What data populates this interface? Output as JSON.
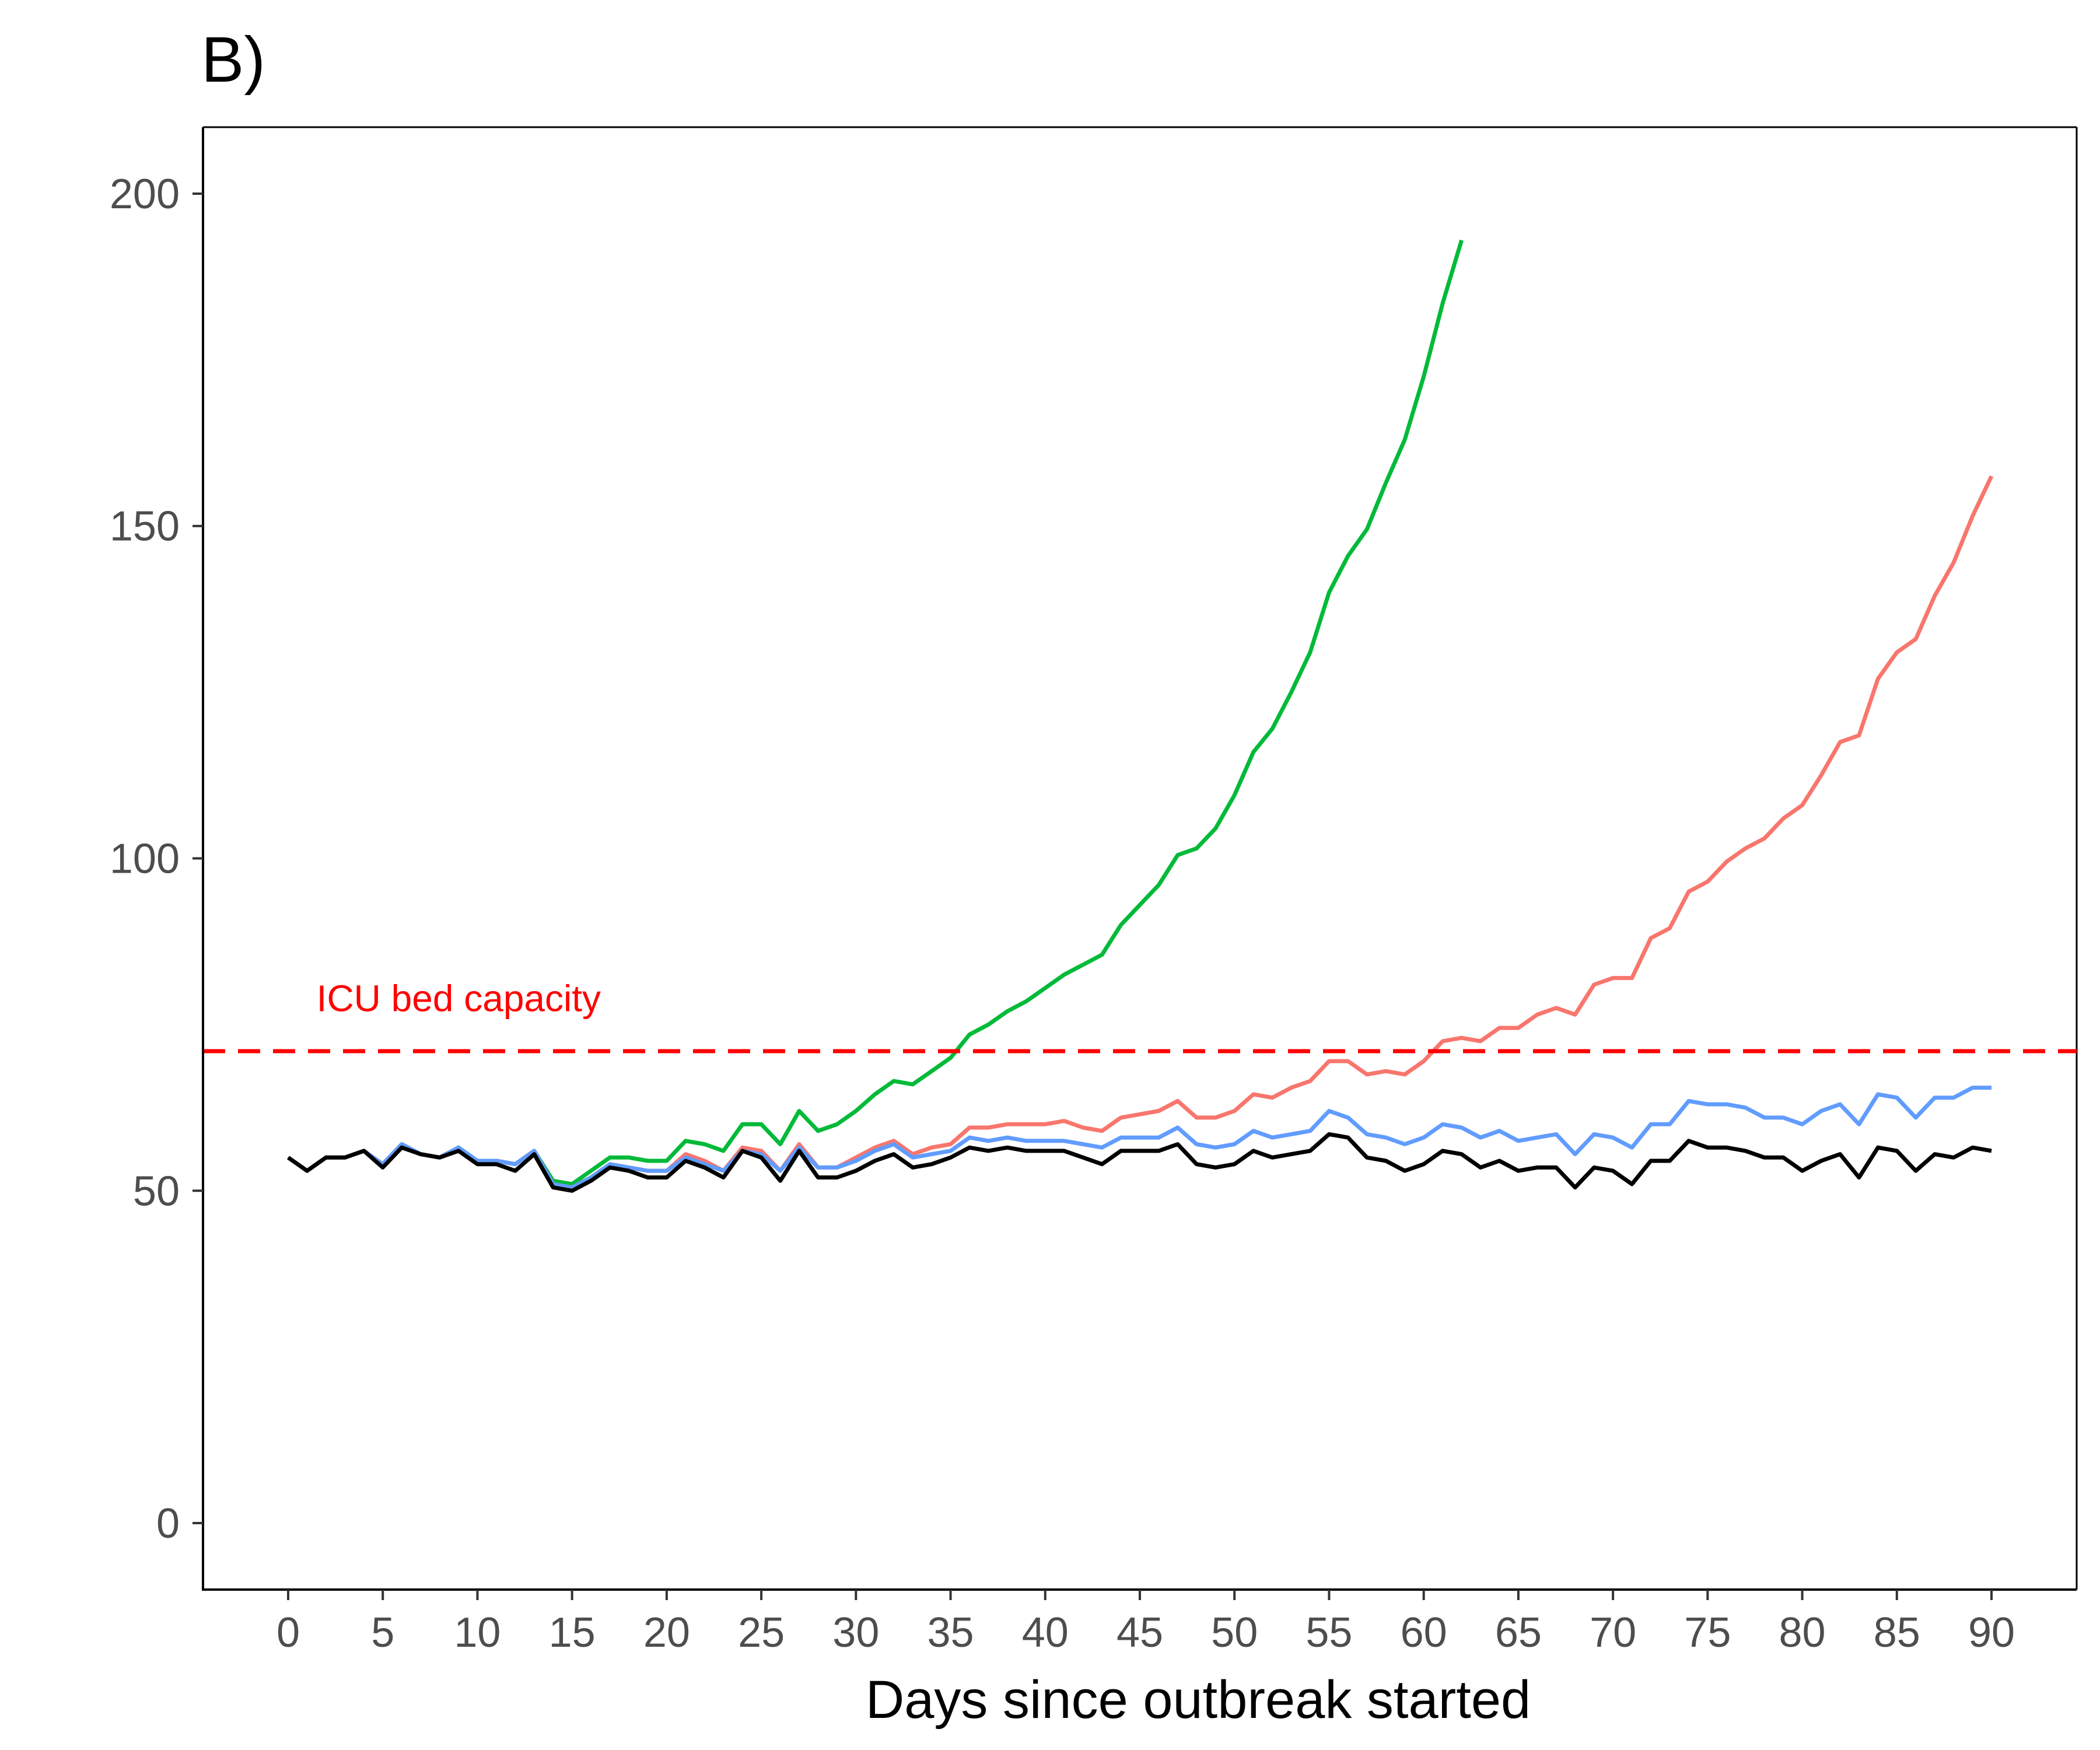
{
  "panel_label": "B)",
  "chart_data": {
    "type": "line",
    "title": "",
    "xlabel": "Days since outbreak started",
    "ylabel": "",
    "xlim": [
      -4.5,
      94.5
    ],
    "ylim": [
      -10,
      210
    ],
    "x_ticks": [
      0,
      5,
      10,
      15,
      20,
      25,
      30,
      35,
      40,
      45,
      50,
      55,
      60,
      65,
      70,
      75,
      80,
      85,
      90
    ],
    "x_tick_labels": [
      "0",
      "5",
      "10",
      "15",
      "20",
      "25",
      "30",
      "35",
      "40",
      "45",
      "50",
      "55",
      "60",
      "65",
      "70",
      "75",
      "80",
      "85",
      "90"
    ],
    "y_ticks": [
      0,
      50,
      100,
      150,
      200
    ],
    "y_tick_labels": [
      "0",
      "50",
      "100",
      "150",
      "200"
    ],
    "grid": false,
    "legend": "none",
    "reference_line": {
      "y": 71,
      "label": "ICU bed capacity",
      "label_x": 1.5,
      "label_y": 77,
      "color": "#ff0000",
      "style": "dashed"
    },
    "series": [
      {
        "color": "#00ba38",
        "x": [
          0,
          1,
          2,
          3,
          4,
          5,
          6,
          7,
          8,
          9,
          10,
          11,
          12,
          13,
          14,
          15,
          16,
          17,
          18,
          19,
          20,
          21,
          22,
          23,
          24,
          25,
          26,
          27,
          28,
          29,
          30,
          31,
          32,
          33,
          34,
          35,
          36,
          37,
          38,
          39,
          40,
          41,
          42,
          43,
          44,
          45,
          46,
          47,
          48,
          49,
          50,
          51,
          52,
          53,
          54,
          55,
          56,
          57,
          58,
          59,
          60,
          61,
          62
        ],
        "y": [
          55,
          53,
          55,
          55,
          56,
          54,
          57,
          55.5,
          55,
          56.5,
          54.5,
          54.5,
          54,
          56,
          51.5,
          51,
          53,
          55,
          55,
          54.5,
          54.5,
          57.5,
          57,
          56,
          60,
          60,
          57,
          62,
          59,
          60,
          62,
          64.5,
          66.5,
          66,
          68,
          70,
          73.5,
          75,
          77,
          78.5,
          80.5,
          82.5,
          84,
          85.5,
          90,
          93,
          96,
          100.5,
          101.5,
          104.5,
          109.5,
          116,
          119.5,
          125,
          131,
          140,
          145.5,
          149.5,
          156.5,
          163,
          172.5,
          183.5,
          193
        ]
      },
      {
        "color": "#f8766d",
        "x": [
          0,
          1,
          2,
          3,
          4,
          5,
          6,
          7,
          8,
          9,
          10,
          11,
          12,
          13,
          14,
          15,
          16,
          17,
          18,
          19,
          20,
          21,
          22,
          23,
          24,
          25,
          26,
          27,
          28,
          29,
          30,
          31,
          32,
          33,
          34,
          35,
          36,
          37,
          38,
          39,
          40,
          41,
          42,
          43,
          44,
          45,
          46,
          47,
          48,
          49,
          50,
          51,
          52,
          53,
          54,
          55,
          56,
          57,
          58,
          59,
          60,
          61,
          62,
          63,
          64,
          65,
          66,
          67,
          68,
          69,
          70,
          71,
          72,
          73,
          74,
          75,
          76,
          77,
          78,
          79,
          80,
          81,
          82,
          83,
          84,
          85,
          86,
          87,
          88,
          89,
          90
        ],
        "y": [
          55,
          53,
          55,
          55,
          56,
          54,
          57,
          55.5,
          55,
          56.5,
          54.5,
          54.5,
          54,
          56,
          51,
          50.5,
          52,
          54,
          53.5,
          53,
          53,
          55.5,
          54.5,
          53,
          56.5,
          56,
          53,
          57,
          53.5,
          53.5,
          55,
          56.5,
          57.5,
          55.5,
          56.5,
          57,
          59.5,
          59.5,
          60,
          60,
          60,
          60.5,
          59.5,
          59,
          61,
          61.5,
          62,
          63.5,
          61,
          61,
          62,
          64.5,
          64,
          65.5,
          66.5,
          69.5,
          69.5,
          67.5,
          68,
          67.5,
          69.5,
          72.5,
          73,
          72.5,
          74.5,
          74.5,
          76.5,
          77.5,
          76.5,
          81,
          82,
          82,
          88,
          89.5,
          95,
          96.5,
          99.5,
          101.5,
          103,
          106,
          108,
          112.5,
          117.5,
          118.5,
          127,
          131,
          133,
          139.5,
          144.5,
          151.5,
          157.5
        ]
      },
      {
        "color": "#619cff",
        "x": [
          0,
          1,
          2,
          3,
          4,
          5,
          6,
          7,
          8,
          9,
          10,
          11,
          12,
          13,
          14,
          15,
          16,
          17,
          18,
          19,
          20,
          21,
          22,
          23,
          24,
          25,
          26,
          27,
          28,
          29,
          30,
          31,
          32,
          33,
          34,
          35,
          36,
          37,
          38,
          39,
          40,
          41,
          42,
          43,
          44,
          45,
          46,
          47,
          48,
          49,
          50,
          51,
          52,
          53,
          54,
          55,
          56,
          57,
          58,
          59,
          60,
          61,
          62,
          63,
          64,
          65,
          66,
          67,
          68,
          69,
          70,
          71,
          72,
          73,
          74,
          75,
          76,
          77,
          78,
          79,
          80,
          81,
          82,
          83,
          84,
          85,
          86,
          87,
          88,
          89,
          90
        ],
        "y": [
          55,
          53,
          55,
          55,
          56,
          54,
          57,
          55.5,
          55,
          56.5,
          54.5,
          54.5,
          54,
          56,
          51,
          50.5,
          52,
          54,
          53.5,
          53,
          53,
          55,
          54,
          53,
          56,
          55.5,
          53,
          56.5,
          53.5,
          53.5,
          54.5,
          56,
          57,
          55,
          55.5,
          56,
          58,
          57.5,
          58,
          57.5,
          57.5,
          57.5,
          57,
          56.5,
          58,
          58,
          58,
          59.5,
          57,
          56.5,
          57,
          59,
          58,
          58.5,
          59,
          62,
          61,
          58.5,
          58,
          57,
          58,
          60,
          59.5,
          58,
          59,
          57.5,
          58,
          58.5,
          55.5,
          58.5,
          58,
          56.5,
          60,
          60,
          63.5,
          63,
          63,
          62.5,
          61,
          61,
          60,
          62,
          63,
          60,
          64.5,
          64,
          61,
          64,
          64,
          65.5,
          65.5
        ]
      },
      {
        "color": "#000000",
        "x": [
          0,
          1,
          2,
          3,
          4,
          5,
          6,
          7,
          8,
          9,
          10,
          11,
          12,
          13,
          14,
          15,
          16,
          17,
          18,
          19,
          20,
          21,
          22,
          23,
          24,
          25,
          26,
          27,
          28,
          29,
          30,
          31,
          32,
          33,
          34,
          35,
          36,
          37,
          38,
          39,
          40,
          41,
          42,
          43,
          44,
          45,
          46,
          47,
          48,
          49,
          50,
          51,
          52,
          53,
          54,
          55,
          56,
          57,
          58,
          59,
          60,
          61,
          62,
          63,
          64,
          65,
          66,
          67,
          68,
          69,
          70,
          71,
          72,
          73,
          74,
          75,
          76,
          77,
          78,
          79,
          80,
          81,
          82,
          83,
          84,
          85,
          86,
          87,
          88,
          89,
          90
        ],
        "y": [
          55,
          53,
          55,
          55,
          56,
          53.5,
          56.5,
          55.5,
          55,
          56,
          54,
          54,
          53,
          55.5,
          50.5,
          50,
          51.5,
          53.5,
          53,
          52,
          52,
          54.5,
          53.5,
          52,
          56,
          55,
          51.5,
          56,
          52,
          52,
          53,
          54.5,
          55.5,
          53.5,
          54,
          55,
          56.5,
          56,
          56.5,
          56,
          56,
          56,
          55,
          54,
          56,
          56,
          56,
          57,
          54,
          53.5,
          54,
          56,
          55,
          55.5,
          56,
          58.5,
          58,
          55,
          54.5,
          53,
          54,
          56,
          55.5,
          53.5,
          54.5,
          53,
          53.5,
          53.5,
          50.5,
          53.5,
          53,
          51,
          54.5,
          54.5,
          57.5,
          56.5,
          56.5,
          56,
          55,
          55,
          53,
          54.5,
          55.5,
          52,
          56.5,
          56,
          53,
          55.5,
          55,
          56.5,
          56
        ]
      }
    ]
  }
}
